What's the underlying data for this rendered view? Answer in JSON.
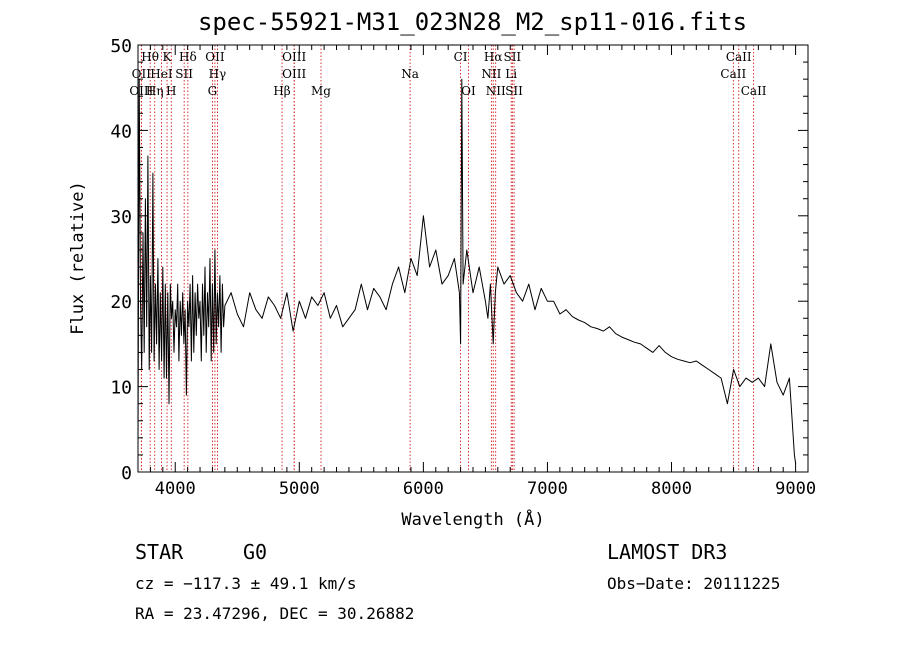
{
  "chart_data": {
    "type": "line",
    "title": "spec-55921-M31_023N28_M2_sp11-016.fits",
    "xlabel": "Wavelength (Å)",
    "ylabel": "Flux (relative)",
    "xlim": [
      3700,
      9100
    ],
    "ylim": [
      0,
      50
    ],
    "xticks": [
      4000,
      5000,
      6000,
      7000,
      8000,
      9000
    ],
    "yticks": [
      0,
      10,
      20,
      30,
      40,
      50
    ],
    "series": [
      {
        "name": "flux",
        "x": [
          3700,
          3710,
          3720,
          3730,
          3740,
          3750,
          3760,
          3770,
          3780,
          3790,
          3800,
          3810,
          3820,
          3830,
          3840,
          3850,
          3860,
          3870,
          3880,
          3890,
          3900,
          3910,
          3920,
          3930,
          3940,
          3950,
          3960,
          3970,
          3980,
          3990,
          4000,
          4010,
          4020,
          4030,
          4040,
          4050,
          4060,
          4070,
          4080,
          4090,
          4100,
          4110,
          4120,
          4130,
          4140,
          4150,
          4160,
          4170,
          4180,
          4190,
          4200,
          4210,
          4220,
          4230,
          4240,
          4250,
          4260,
          4270,
          4280,
          4290,
          4300,
          4310,
          4320,
          4330,
          4340,
          4350,
          4360,
          4370,
          4380,
          4390,
          4400,
          4450,
          4500,
          4550,
          4600,
          4650,
          4700,
          4750,
          4800,
          4850,
          4900,
          4950,
          5000,
          5050,
          5100,
          5150,
          5200,
          5250,
          5300,
          5350,
          5400,
          5450,
          5500,
          5550,
          5600,
          5650,
          5700,
          5750,
          5800,
          5850,
          5900,
          5950,
          6000,
          6050,
          6100,
          6150,
          6200,
          6250,
          6290,
          6300,
          6310,
          6320,
          6350,
          6400,
          6450,
          6500,
          6520,
          6540,
          6563,
          6580,
          6600,
          6650,
          6700,
          6750,
          6800,
          6850,
          6900,
          6950,
          7000,
          7050,
          7100,
          7150,
          7200,
          7250,
          7300,
          7350,
          7400,
          7450,
          7500,
          7550,
          7600,
          7650,
          7700,
          7750,
          7800,
          7850,
          7900,
          7950,
          8000,
          8050,
          8100,
          8150,
          8200,
          8250,
          8300,
          8350,
          8400,
          8450,
          8500,
          8550,
          8600,
          8650,
          8700,
          8750,
          8800,
          8850,
          8900,
          8950,
          8990,
          9000
        ],
        "values": [
          3,
          46,
          20,
          12,
          28,
          14,
          32,
          17,
          37,
          12,
          23,
          14,
          35,
          13,
          22,
          15,
          25,
          12,
          21,
          13,
          24,
          11,
          22,
          11,
          21,
          8,
          22,
          18,
          20,
          14,
          19,
          17,
          22,
          13,
          20,
          16,
          21,
          15,
          19,
          9,
          20,
          17,
          22,
          13,
          23,
          14,
          21,
          16,
          22,
          18,
          20,
          13,
          22,
          16,
          24,
          14,
          21,
          17,
          25,
          13,
          22,
          14,
          26,
          15,
          21,
          17,
          23,
          14,
          22,
          17,
          19.5,
          21,
          18.5,
          17,
          21,
          19,
          18,
          20.5,
          19.5,
          18,
          21,
          16.5,
          20,
          18,
          20.5,
          19.5,
          21,
          18,
          19.5,
          17,
          18,
          19,
          22,
          19,
          21.5,
          20.5,
          19,
          22,
          24,
          21,
          25,
          23,
          30,
          24,
          26,
          22,
          23,
          25,
          21,
          15,
          46,
          22,
          26,
          21,
          24,
          20,
          18,
          22,
          15,
          21,
          24,
          22,
          23,
          21,
          20,
          22,
          19,
          21.5,
          20,
          20,
          18.5,
          19,
          18.2,
          17.8,
          17.5,
          17,
          16.8,
          16.5,
          17,
          16.2,
          15.8,
          15.5,
          15.2,
          15,
          14.5,
          14,
          14.8,
          14,
          13.5,
          13.2,
          13,
          12.8,
          13,
          12.5,
          12,
          11.5,
          11,
          8,
          12,
          10,
          11,
          10.5,
          11,
          10,
          15,
          10.5,
          9,
          11,
          2,
          1
        ]
      }
    ],
    "line_annotations": [
      {
        "label": "Hθ",
        "x": 3798,
        "row": 1
      },
      {
        "label": "K",
        "x": 3934,
        "row": 1
      },
      {
        "label": "Hδ",
        "x": 4102,
        "row": 1
      },
      {
        "label": "OII",
        "x": 4320,
        "row": 1
      },
      {
        "label": "OIII",
        "x": 4959,
        "row": 1
      },
      {
        "label": "CI",
        "x": 6300,
        "row": 1
      },
      {
        "label": "Hα",
        "x": 6563,
        "row": 1
      },
      {
        "label": "SII",
        "x": 6717,
        "row": 1
      },
      {
        "label": "CaII",
        "x": 8542,
        "row": 1
      },
      {
        "label": "OII",
        "x": 3727,
        "row": 2
      },
      {
        "label": "HeI",
        "x": 3889,
        "row": 2
      },
      {
        "label": "SII",
        "x": 4072,
        "row": 2
      },
      {
        "label": "Hγ",
        "x": 4340,
        "row": 2
      },
      {
        "label": "OIII",
        "x": 4959,
        "row": 2
      },
      {
        "label": "Na",
        "x": 5893,
        "row": 2
      },
      {
        "label": "NII",
        "x": 6548,
        "row": 2
      },
      {
        "label": "Li",
        "x": 6708,
        "row": 2
      },
      {
        "label": "CaII",
        "x": 8498,
        "row": 2
      },
      {
        "label": "OIII",
        "x": 3727,
        "row": 3
      },
      {
        "label": "Hη",
        "x": 3835,
        "row": 3
      },
      {
        "label": "H",
        "x": 3968,
        "row": 3
      },
      {
        "label": "G",
        "x": 4300,
        "row": 3
      },
      {
        "label": "Hβ",
        "x": 4861,
        "row": 3
      },
      {
        "label": "Mg",
        "x": 5175,
        "row": 3
      },
      {
        "label": "OI",
        "x": 6363,
        "row": 3
      },
      {
        "label": "NII",
        "x": 6583,
        "row": 3
      },
      {
        "label": "SII",
        "x": 6731,
        "row": 3
      },
      {
        "label": "CaII",
        "x": 8662,
        "row": 3
      }
    ],
    "line_color": "#000000",
    "marker_color": "#cc0000"
  },
  "info": {
    "class": "STAR",
    "subclass": "G0",
    "survey": "LAMOST DR3",
    "redshift": "cz = −117.3 ± 49.1 km/s",
    "obs_date": "Obs−Date: 20111225",
    "coords": "RA =  23.47296, DEC =  30.26882"
  }
}
